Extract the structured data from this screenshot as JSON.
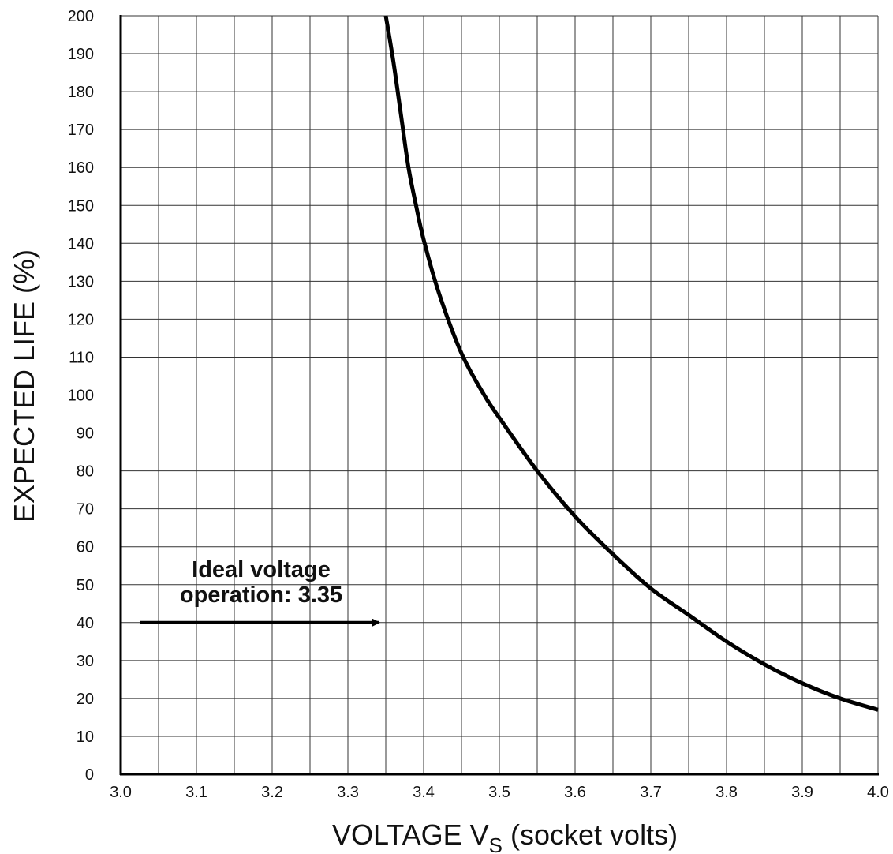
{
  "chart_data": {
    "type": "line",
    "title": "",
    "xlabel": {
      "main": "VOLTAGE  V",
      "subscript": "S",
      "suffix": " (socket volts)"
    },
    "ylabel": "EXPECTED LIFE (%)",
    "xlim": [
      3.0,
      4.0
    ],
    "ylim": [
      0,
      200
    ],
    "grid": true,
    "x_ticks": [
      3.0,
      3.05,
      3.1,
      3.15,
      3.2,
      3.25,
      3.3,
      3.35,
      3.4,
      3.45,
      3.5,
      3.55,
      3.6,
      3.65,
      3.7,
      3.75,
      3.8,
      3.85,
      3.9,
      3.95,
      4.0
    ],
    "x_tick_labels": [
      "3.0",
      "3.1",
      "3.2",
      "3.3",
      "3.4",
      "3.5",
      "3.6",
      "3.7",
      "3.8",
      "3.9",
      "4.0"
    ],
    "x_tick_label_values": [
      3.0,
      3.1,
      3.2,
      3.3,
      3.4,
      3.5,
      3.6,
      3.7,
      3.8,
      3.9,
      4.0
    ],
    "y_ticks": [
      0,
      10,
      20,
      30,
      40,
      50,
      60,
      70,
      80,
      90,
      100,
      110,
      120,
      130,
      140,
      150,
      160,
      170,
      180,
      190,
      200
    ],
    "y_tick_labels": [
      "0",
      "10",
      "20",
      "30",
      "40",
      "50",
      "60",
      "70",
      "80",
      "90",
      "100",
      "110",
      "120",
      "130",
      "140",
      "150",
      "160",
      "170",
      "180",
      "190",
      "200"
    ],
    "series": [
      {
        "x": [
          3.35,
          3.36,
          3.37,
          3.38,
          3.39,
          3.4,
          3.42,
          3.45,
          3.48,
          3.5,
          3.55,
          3.6,
          3.65,
          3.7,
          3.75,
          3.8,
          3.85,
          3.9,
          3.95,
          4.0
        ],
        "y": [
          200,
          188,
          174,
          160,
          150,
          141,
          127,
          111,
          100,
          94,
          80,
          68,
          58,
          49,
          42,
          35,
          29,
          24,
          20,
          17
        ]
      }
    ],
    "annotations": [
      {
        "lines": [
          "Ideal voltage",
          "operation: 3.35"
        ],
        "arrow": {
          "from": [
            3.025,
            40
          ],
          "to": [
            3.35,
            40
          ]
        }
      }
    ]
  }
}
